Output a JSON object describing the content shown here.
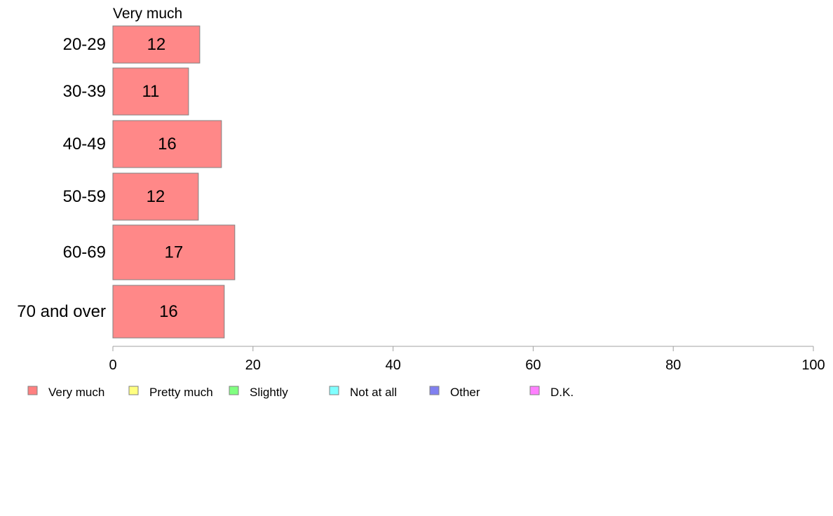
{
  "chart_data": {
    "type": "bar",
    "orientation": "horizontal",
    "series_title": "Very much",
    "categories": [
      "20-29",
      "30-39",
      "40-49",
      "50-59",
      "60-69",
      "70 and over"
    ],
    "series": [
      {
        "name": "Very much",
        "values": [
          12.4,
          10.8,
          15.5,
          12.2,
          17.4,
          15.9
        ],
        "labels": [
          "12",
          "11",
          "16",
          "12",
          "17",
          "16"
        ]
      }
    ],
    "xlim": [
      0,
      100
    ],
    "xticks": [
      0,
      20,
      40,
      60,
      80,
      100
    ],
    "grid": false,
    "legend_position": "bottom-left",
    "legend": [
      {
        "label": "Very much",
        "color": "#ff8080"
      },
      {
        "label": "Pretty much",
        "color": "#ffff80"
      },
      {
        "label": "Slightly",
        "color": "#80ff80"
      },
      {
        "label": "Not at all",
        "color": "#80ffff"
      },
      {
        "label": "Other",
        "color": "#8080f0"
      },
      {
        "label": "D.K.",
        "color": "#ff80ff"
      }
    ],
    "colors": {
      "bar_fill": "#ff8888",
      "bar_stroke": "#808080",
      "axis": "#a0a0a0"
    }
  }
}
